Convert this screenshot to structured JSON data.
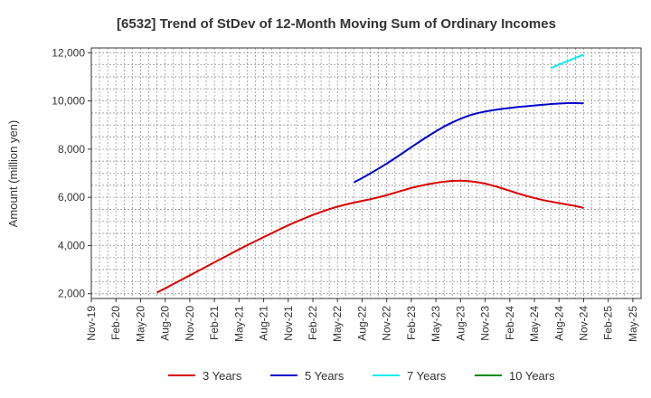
{
  "chart_data": {
    "type": "line",
    "title": "[6532]  Trend of StDev of 12-Month Moving Sum of Ordinary Incomes",
    "xlabel": "",
    "ylabel": "Amount (million yen)",
    "ylim": [
      1800,
      12200
    ],
    "yticks": [
      2000,
      4000,
      6000,
      8000,
      10000,
      12000
    ],
    "ytick_labels": [
      "2,000",
      "4,000",
      "6,000",
      "8,000",
      "10,000",
      "12,000"
    ],
    "x_ticks": [
      "Nov-19",
      "Feb-20",
      "May-20",
      "Aug-20",
      "Nov-20",
      "Feb-21",
      "May-21",
      "Aug-21",
      "Nov-21",
      "Feb-22",
      "May-22",
      "Aug-22",
      "Nov-22",
      "Feb-23",
      "May-23",
      "Aug-23",
      "Nov-23",
      "Feb-24",
      "May-24",
      "Aug-24",
      "Nov-24",
      "Feb-25",
      "May-25"
    ],
    "x_start": "Nov-19",
    "x_end": "Jun-25",
    "grid": true,
    "legend_position": "bottom",
    "series": [
      {
        "name": "3 Years",
        "color": "#dd0000",
        "points": [
          [
            "Jul-20",
            2050
          ],
          [
            "Aug-20",
            2220
          ],
          [
            "Sep-20",
            2400
          ],
          [
            "Oct-20",
            2580
          ],
          [
            "Nov-20",
            2760
          ],
          [
            "Dec-20",
            2940
          ],
          [
            "Jan-21",
            3120
          ],
          [
            "Feb-21",
            3300
          ],
          [
            "Mar-21",
            3480
          ],
          [
            "Apr-21",
            3660
          ],
          [
            "May-21",
            3840
          ],
          [
            "Jun-21",
            4010
          ],
          [
            "Jul-21",
            4180
          ],
          [
            "Aug-21",
            4350
          ],
          [
            "Sep-21",
            4510
          ],
          [
            "Oct-21",
            4680
          ],
          [
            "Nov-21",
            4840
          ],
          [
            "Dec-21",
            4990
          ],
          [
            "Jan-22",
            5130
          ],
          [
            "Feb-22",
            5270
          ],
          [
            "Mar-22",
            5390
          ],
          [
            "Apr-22",
            5510
          ],
          [
            "May-22",
            5610
          ],
          [
            "Jun-22",
            5700
          ],
          [
            "Jul-22",
            5780
          ],
          [
            "Aug-22",
            5850
          ],
          [
            "Sep-22",
            5920
          ],
          [
            "Oct-22",
            6000
          ],
          [
            "Nov-22",
            6090
          ],
          [
            "Dec-22",
            6190
          ],
          [
            "Jan-23",
            6290
          ],
          [
            "Feb-23",
            6390
          ],
          [
            "Mar-23",
            6470
          ],
          [
            "Apr-23",
            6540
          ],
          [
            "May-23",
            6600
          ],
          [
            "Jun-23",
            6650
          ],
          [
            "Jul-23",
            6680
          ],
          [
            "Aug-23",
            6690
          ],
          [
            "Sep-23",
            6670
          ],
          [
            "Oct-23",
            6630
          ],
          [
            "Nov-23",
            6570
          ],
          [
            "Dec-23",
            6480
          ],
          [
            "Jan-24",
            6380
          ],
          [
            "Feb-24",
            6270
          ],
          [
            "Mar-24",
            6160
          ],
          [
            "Apr-24",
            6060
          ],
          [
            "May-24",
            5970
          ],
          [
            "Jun-24",
            5890
          ],
          [
            "Jul-24",
            5820
          ],
          [
            "Aug-24",
            5760
          ],
          [
            "Sep-24",
            5700
          ],
          [
            "Oct-24",
            5640
          ],
          [
            "Nov-24",
            5560
          ]
        ]
      },
      {
        "name": "5 Years",
        "color": "#0000cc",
        "points": [
          [
            "Jul-22",
            6620
          ],
          [
            "Aug-22",
            6800
          ],
          [
            "Sep-22",
            6990
          ],
          [
            "Oct-22",
            7190
          ],
          [
            "Nov-22",
            7400
          ],
          [
            "Dec-22",
            7620
          ],
          [
            "Jan-23",
            7850
          ],
          [
            "Feb-23",
            8080
          ],
          [
            "Mar-23",
            8310
          ],
          [
            "Apr-23",
            8530
          ],
          [
            "May-23",
            8740
          ],
          [
            "Jun-23",
            8940
          ],
          [
            "Jul-23",
            9110
          ],
          [
            "Aug-23",
            9260
          ],
          [
            "Sep-23",
            9390
          ],
          [
            "Oct-23",
            9490
          ],
          [
            "Nov-23",
            9560
          ],
          [
            "Dec-23",
            9620
          ],
          [
            "Jan-24",
            9670
          ],
          [
            "Feb-24",
            9710
          ],
          [
            "Mar-24",
            9750
          ],
          [
            "Apr-24",
            9780
          ],
          [
            "May-24",
            9810
          ],
          [
            "Jun-24",
            9840
          ],
          [
            "Jul-24",
            9870
          ],
          [
            "Aug-24",
            9890
          ],
          [
            "Sep-24",
            9910
          ],
          [
            "Oct-24",
            9910
          ],
          [
            "Nov-24",
            9900
          ]
        ]
      },
      {
        "name": "7 Years",
        "color": "#00eeee",
        "points": [
          [
            "Jul-24",
            11360
          ],
          [
            "Aug-24",
            11510
          ],
          [
            "Sep-24",
            11650
          ],
          [
            "Oct-24",
            11790
          ],
          [
            "Nov-24",
            11920
          ]
        ]
      },
      {
        "name": "10 Years",
        "color": "#008800",
        "points": []
      }
    ]
  }
}
